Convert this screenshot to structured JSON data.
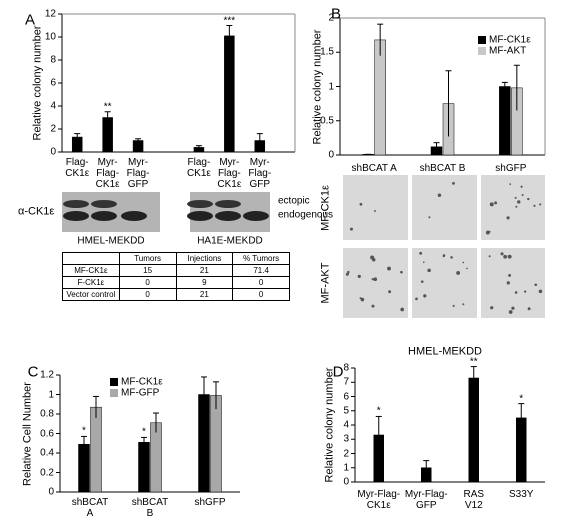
{
  "panels": [
    "A",
    "B",
    "C",
    "D"
  ],
  "blot": {
    "antibody": "α-CK1ε",
    "bands": [
      "ectopic",
      "endogenous"
    ],
    "cell_lines": [
      "HMEL-MEKDD",
      "HA1E-MEKDD"
    ]
  },
  "table": {
    "header": [
      "Tumors",
      "Injections",
      "% Tumors"
    ],
    "rows": [
      [
        "MF-CK1ε",
        15,
        21,
        71.4
      ],
      [
        "F-CK1ε",
        0,
        9,
        0
      ],
      [
        "Vector control",
        0,
        21,
        0
      ]
    ]
  },
  "images": {
    "rows": [
      "MF-CK1ε",
      "MF-AKT"
    ]
  },
  "chart_data": [
    {
      "type": "bar",
      "y_label": "Relative colony number",
      "categories": [
        "Flag-\nCK1ε",
        "Myr-\nFlag-\nCK1ε",
        "Myr-\nFlag-\nGFP",
        null,
        "Flag-\nCK1ε",
        "Myr-\nFlag-\nCK1ε",
        "Myr-\nFlag-\nGFP"
      ],
      "values": [
        1.3,
        3.0,
        1.0,
        null,
        0.4,
        10.1,
        1.0
      ],
      "errors": [
        0.3,
        0.5,
        0.15,
        null,
        0.15,
        0.9,
        0.6
      ],
      "annotations": [
        null,
        "**",
        null,
        null,
        null,
        "***",
        null
      ],
      "color": "#000000",
      "ylim": [
        0,
        12
      ],
      "yticks": [
        0,
        2,
        4,
        6,
        8,
        10,
        12
      ]
    },
    {
      "type": "bar",
      "y_label": "Relative colony number",
      "categories": [
        "shBCAT A",
        "shBCAT B",
        "shGFP"
      ],
      "series": [
        {
          "name": "MF-CK1ε",
          "color": "#000000",
          "values": [
            0.01,
            0.12,
            1.0
          ],
          "errors": [
            0.0,
            0.06,
            0.06
          ]
        },
        {
          "name": "MF-AKT",
          "color": "#c8c8c8",
          "values": [
            1.68,
            0.75,
            0.98
          ],
          "errors": [
            0.23,
            0.48,
            0.33
          ]
        }
      ],
      "legend": "upper right",
      "ylim": [
        0,
        2
      ],
      "yticks": [
        0,
        0.5,
        1,
        1.5,
        2
      ]
    },
    {
      "type": "bar",
      "y_label": "Relative Cell Number",
      "categories": [
        "shBCAT\nA",
        "shBCAT\nB",
        "shGFP"
      ],
      "series": [
        {
          "name": "MF-CK1ε",
          "color": "#000000",
          "values": [
            0.49,
            0.51,
            1.0
          ],
          "errors": [
            0.08,
            0.05,
            0.18
          ],
          "annotations": [
            "*",
            "*",
            null
          ]
        },
        {
          "name": "MF-GFP",
          "color": "#a8a8a8",
          "values": [
            0.87,
            0.71,
            0.99
          ],
          "errors": [
            0.11,
            0.1,
            0.14
          ]
        }
      ],
      "legend": "upper left",
      "ylim": [
        0,
        1.2
      ],
      "yticks": [
        0,
        0.2,
        0.4,
        0.6,
        0.8,
        1,
        1.2
      ]
    },
    {
      "type": "bar",
      "title": "HMEL-MEKDD",
      "y_label": "Relative colony number",
      "categories": [
        "Myr-Flag-\nCK1ε",
        "Myr-Flag-\nGFP",
        "RAS\nV12",
        "S33Y"
      ],
      "values": [
        3.3,
        1.0,
        7.3,
        4.5
      ],
      "errors": [
        1.3,
        0.5,
        0.8,
        1.0
      ],
      "annotations": [
        "*",
        null,
        "**",
        "*"
      ],
      "color": "#000000",
      "ylim": [
        0,
        8
      ],
      "yticks": [
        0,
        1,
        2,
        3,
        4,
        5,
        6,
        7,
        8
      ]
    }
  ]
}
